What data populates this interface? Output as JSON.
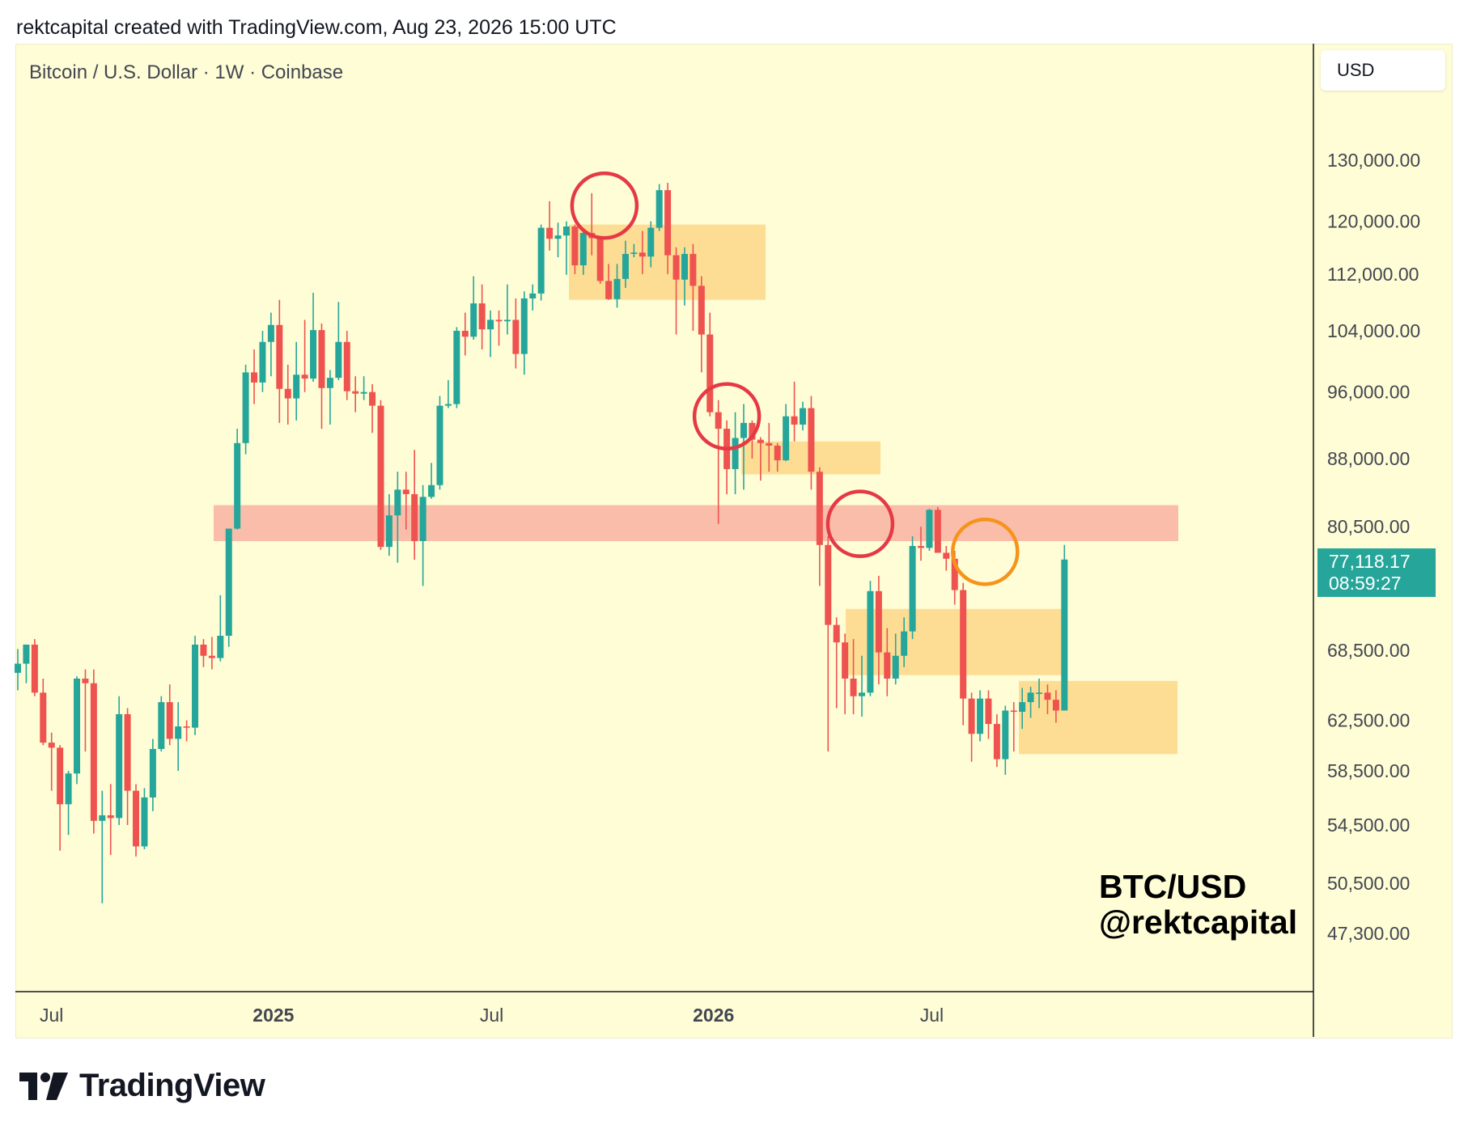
{
  "header": {
    "text": "rektcapital created with TradingView.com, Aug 23, 2026 15:00 UTC"
  },
  "symbol_line": "Bitcoin / U.S. Dollar · 1W · Coinbase",
  "currency": "USD",
  "price_tag": {
    "price": "77,118.17",
    "countdown": "08:59:27"
  },
  "watermark": {
    "pair": "BTC/USD",
    "handle": "@rektcapital"
  },
  "logo": {
    "text": "TradingView",
    "icon": "tradingview-logo-icon"
  },
  "colors": {
    "background": "#fefdd6",
    "up": "#26a69a",
    "down": "#ef5350",
    "resistance_band": "#f9b9a6",
    "zone": "#fdd98d",
    "circle_red": "#e53945",
    "circle_orange": "#f7931a"
  },
  "chart_data": {
    "type": "candlestick",
    "scale": "log",
    "ylim": [
      45000,
      150000
    ],
    "y_ticks": [
      "130,000.00",
      "120,000.00",
      "112,000.00",
      "104,000.00",
      "96,000.00",
      "88,000.00",
      "80,500.00",
      "68,500.00",
      "62,500.00",
      "58,500.00",
      "54,500.00",
      "50,500.00",
      "47,300.00"
    ],
    "x_ticks": [
      {
        "label": "Jul",
        "bold": false,
        "date": "2024-07-01"
      },
      {
        "label": "2025",
        "bold": true,
        "date": "2025-01-01"
      },
      {
        "label": "Jul",
        "bold": false,
        "date": "2025-07-01"
      },
      {
        "label": "2026",
        "bold": true,
        "date": "2026-01-01"
      },
      {
        "label": "Jul",
        "bold": false,
        "date": "2026-07-01"
      }
    ],
    "first_candle_week": "2024-06-03",
    "ohlc": [
      [
        66500,
        68600,
        65000,
        67300
      ],
      [
        67300,
        69000,
        65600,
        69000
      ],
      [
        69000,
        69500,
        64500,
        64800
      ],
      [
        64800,
        66000,
        60500,
        60700
      ],
      [
        60700,
        61500,
        57000,
        60300
      ],
      [
        60300,
        60500,
        52700,
        56000
      ],
      [
        56000,
        58500,
        53800,
        58300
      ],
      [
        58300,
        66200,
        57500,
        66000
      ],
      [
        66000,
        66800,
        60000,
        65600
      ],
      [
        65600,
        66800,
        53900,
        54800
      ],
      [
        54800,
        57000,
        49200,
        55200
      ],
      [
        55200,
        57500,
        52400,
        55000
      ],
      [
        55000,
        64500,
        54500,
        63000
      ],
      [
        63000,
        63500,
        54500,
        57000
      ],
      [
        57000,
        57500,
        52300,
        53000
      ],
      [
        53000,
        57200,
        52800,
        56500
      ],
      [
        56500,
        61000,
        55500,
        60200
      ],
      [
        60200,
        64500,
        60000,
        64000
      ],
      [
        64000,
        65500,
        60500,
        61000
      ],
      [
        61000,
        64000,
        58500,
        62000
      ],
      [
        62000,
        62500,
        60800,
        61900
      ],
      [
        61900,
        69800,
        61300,
        69000
      ],
      [
        69000,
        69500,
        67000,
        68000
      ],
      [
        68000,
        69700,
        66800,
        67800
      ],
      [
        67800,
        73600,
        67500,
        69800
      ],
      [
        69800,
        80300,
        68800,
        80300
      ],
      [
        80300,
        91500,
        80200,
        89800
      ],
      [
        89800,
        99500,
        88500,
        98500
      ],
      [
        98500,
        101500,
        94500,
        97200
      ],
      [
        97200,
        104000,
        96000,
        102500
      ],
      [
        102500,
        106500,
        98000,
        104800
      ],
      [
        104800,
        108300,
        92200,
        96400
      ],
      [
        96400,
        99500,
        92000,
        95200
      ],
      [
        95200,
        102500,
        92500,
        98200
      ],
      [
        98200,
        105500,
        96000,
        97700
      ],
      [
        97700,
        109300,
        97300,
        104100
      ],
      [
        104100,
        105000,
        91500,
        96500
      ],
      [
        96500,
        98800,
        92000,
        97800
      ],
      [
        97800,
        108000,
        97500,
        102500
      ],
      [
        102500,
        104000,
        95000,
        96100
      ],
      [
        96100,
        98000,
        93500,
        95800
      ],
      [
        95800,
        98000,
        95000,
        96000
      ],
      [
        96000,
        97000,
        91000,
        94300
      ],
      [
        94300,
        95000,
        78100,
        78400
      ],
      [
        78400,
        84000,
        77500,
        81700
      ],
      [
        81700,
        86500,
        76800,
        84500
      ],
      [
        84500,
        86500,
        80200,
        84000
      ],
      [
        84000,
        89000,
        77100,
        79000
      ],
      [
        79000,
        85000,
        74500,
        83700
      ],
      [
        83700,
        87500,
        83500,
        85000
      ],
      [
        85000,
        95500,
        84500,
        94300
      ],
      [
        94300,
        97500,
        94000,
        94500
      ],
      [
        94500,
        104500,
        94000,
        104000
      ],
      [
        104000,
        106500,
        100700,
        103200
      ],
      [
        103200,
        111700,
        102800,
        107800
      ],
      [
        107800,
        110500,
        101500,
        104200
      ],
      [
        104200,
        106800,
        100500,
        105500
      ],
      [
        105500,
        106800,
        102000,
        105300
      ],
      [
        105300,
        110500,
        103500,
        105500
      ],
      [
        105500,
        108500,
        99000,
        100900
      ],
      [
        100900,
        109500,
        98200,
        108500
      ],
      [
        108500,
        110500,
        106800,
        109200
      ],
      [
        109200,
        119500,
        108200,
        119000
      ],
      [
        119000,
        123200,
        115500,
        117300
      ],
      [
        117300,
        119800,
        114500,
        117800
      ],
      [
        117800,
        120000,
        111900,
        119200
      ],
      [
        119200,
        119500,
        112000,
        113300
      ],
      [
        113300,
        118500,
        111900,
        118200
      ],
      [
        118200,
        124500,
        114800,
        117400
      ],
      [
        117400,
        117700,
        110600,
        111000
      ],
      [
        111000,
        113500,
        108300,
        108400
      ],
      [
        108400,
        113500,
        107200,
        111300
      ],
      [
        111300,
        117000,
        110000,
        115000
      ],
      [
        115000,
        116500,
        114500,
        115200
      ],
      [
        115200,
        118500,
        112000,
        114600
      ],
      [
        114600,
        120000,
        113000,
        119000
      ],
      [
        119000,
        126000,
        118500,
        125000
      ],
      [
        125000,
        126200,
        112000,
        114800
      ],
      [
        114800,
        116000,
        103500,
        111200
      ],
      [
        111200,
        116000,
        107500,
        115000
      ],
      [
        115000,
        116500,
        104000,
        110300
      ],
      [
        110300,
        111700,
        98500,
        103500
      ],
      [
        103500,
        106500,
        93000,
        93500
      ],
      [
        93500,
        95000,
        80800,
        91500
      ],
      [
        91500,
        92500,
        84000,
        86800
      ],
      [
        86800,
        93500,
        84000,
        90400
      ],
      [
        90400,
        94500,
        84500,
        92200
      ],
      [
        92200,
        92500,
        88000,
        90200
      ],
      [
        90200,
        90500,
        85500,
        89800
      ],
      [
        89800,
        92200,
        86500,
        89500
      ],
      [
        89500,
        89800,
        86500,
        87800
      ],
      [
        87800,
        94500,
        87700,
        93000
      ],
      [
        93000,
        97300,
        90000,
        92000
      ],
      [
        92000,
        94800,
        91300,
        94000
      ],
      [
        94000,
        95500,
        84500,
        86500
      ],
      [
        86500,
        87000,
        74500,
        78600
      ],
      [
        78600,
        79500,
        60000,
        70800
      ],
      [
        70800,
        71500,
        63500,
        69200
      ],
      [
        69200,
        70000,
        63000,
        66000
      ],
      [
        66000,
        69500,
        63000,
        64500
      ],
      [
        64500,
        68000,
        62800,
        64800
      ],
      [
        64800,
        75000,
        64500,
        74000
      ],
      [
        74000,
        75500,
        65500,
        68300
      ],
      [
        68300,
        70500,
        64500,
        66000
      ],
      [
        66000,
        70000,
        65500,
        68000
      ],
      [
        68000,
        71500,
        67000,
        70200
      ],
      [
        70200,
        79500,
        69500,
        78500
      ],
      [
        78500,
        80500,
        77000,
        78300
      ],
      [
        78300,
        82400,
        78000,
        82300
      ],
      [
        82300,
        82600,
        77800,
        77800
      ],
      [
        77800,
        78500,
        76000,
        77200
      ],
      [
        77200,
        78000,
        72700,
        74100
      ],
      [
        74100,
        74800,
        62100,
        64300
      ],
      [
        64300,
        64800,
        59200,
        61400
      ],
      [
        61400,
        65000,
        60800,
        64300
      ],
      [
        64300,
        65000,
        61000,
        62200
      ],
      [
        62200,
        63000,
        58800,
        59400
      ],
      [
        59400,
        63700,
        58200,
        63300
      ],
      [
        63300,
        64000,
        60000,
        63200
      ],
      [
        63200,
        65200,
        61800,
        64000
      ],
      [
        64000,
        65300,
        62700,
        64800
      ],
      [
        64800,
        66000,
        63500,
        64800
      ],
      [
        64800,
        65500,
        63000,
        64200
      ],
      [
        64200,
        65000,
        62300,
        63300
      ],
      [
        63300,
        78600,
        63300,
        77118
      ]
    ]
  }
}
